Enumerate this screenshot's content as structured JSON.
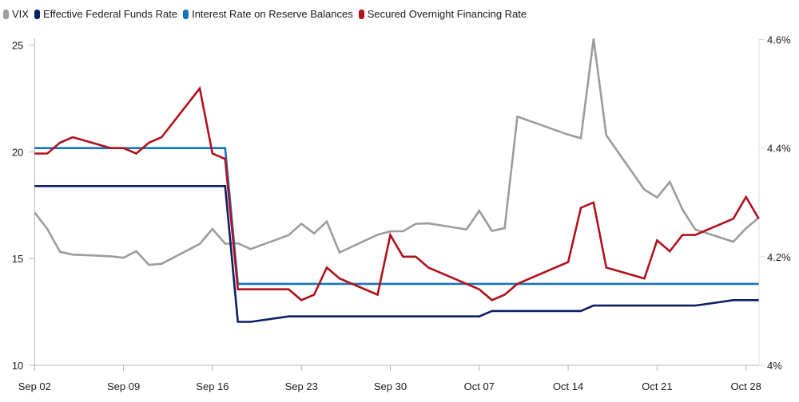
{
  "chart_data": {
    "type": "line",
    "title": "",
    "legend_placement": "top-left",
    "x_tick_labels": [
      "Sep 02",
      "Sep 09",
      "Sep 16",
      "Sep 23",
      "Sep 30",
      "Oct 07",
      "Oct 14",
      "Oct 21",
      "Oct 28"
    ],
    "x_tick_days": [
      0,
      7,
      14,
      21,
      28,
      35,
      42,
      49,
      56
    ],
    "x_days": [
      0,
      1,
      2,
      3,
      6,
      7,
      8,
      9,
      10,
      13,
      14,
      15,
      16,
      17,
      20,
      21,
      22,
      23,
      24,
      27,
      28,
      29,
      30,
      31,
      34,
      35,
      36,
      37,
      38,
      42,
      43,
      44,
      45,
      48,
      49,
      50,
      51,
      52,
      55,
      56,
      57
    ],
    "left_axis": {
      "label": "",
      "ylim": [
        10,
        25
      ],
      "ticks": [
        "10",
        "15",
        "20",
        "25"
      ],
      "tick_values": [
        10,
        15,
        20,
        25
      ]
    },
    "right_axis": {
      "label": "",
      "ylim": [
        4.0,
        4.6
      ],
      "ticks": [
        "4%",
        "4.2%",
        "4.4%",
        "4.6%"
      ],
      "tick_values": [
        4.0,
        4.2,
        4.4,
        4.6
      ]
    },
    "series": [
      {
        "name": "VIX",
        "axis": "left",
        "color": "#9b9ca0",
        "values": [
          17.16,
          16.39,
          15.32,
          15.19,
          15.11,
          15.04,
          15.35,
          14.71,
          14.76,
          15.69,
          16.39,
          15.7,
          15.72,
          15.45,
          16.1,
          16.64,
          16.18,
          16.74,
          15.29,
          16.12,
          16.28,
          16.28,
          16.63,
          16.65,
          16.37,
          17.24,
          16.3,
          16.43,
          21.66,
          20.81,
          20.64,
          25.31,
          20.78,
          18.23,
          17.87,
          18.6,
          17.3,
          16.37,
          15.79,
          16.42,
          16.92
        ]
      },
      {
        "name": "Effective Federal Funds Rate",
        "axis": "right",
        "color": "#0b1f66",
        "values": [
          4.33,
          4.33,
          4.33,
          4.33,
          4.33,
          4.33,
          4.33,
          4.33,
          4.33,
          4.33,
          4.33,
          4.33,
          4.08,
          4.08,
          4.09,
          4.09,
          4.09,
          4.09,
          4.09,
          4.09,
          4.09,
          4.09,
          4.09,
          4.09,
          4.09,
          4.09,
          4.1,
          4.1,
          4.1,
          4.1,
          4.1,
          4.11,
          4.11,
          4.11,
          4.11,
          4.11,
          4.11,
          4.11,
          4.12,
          4.12,
          4.12
        ]
      },
      {
        "name": "Interest Rate on Reserve Balances",
        "axis": "right",
        "color": "#1a72b9",
        "values": [
          4.4,
          4.4,
          4.4,
          4.4,
          4.4,
          4.4,
          4.4,
          4.4,
          4.4,
          4.4,
          4.4,
          4.4,
          4.15,
          4.15,
          4.15,
          4.15,
          4.15,
          4.15,
          4.15,
          4.15,
          4.15,
          4.15,
          4.15,
          4.15,
          4.15,
          4.15,
          4.15,
          4.15,
          4.15,
          4.15,
          4.15,
          4.15,
          4.15,
          4.15,
          4.15,
          4.15,
          4.15,
          4.15,
          4.15,
          4.15,
          4.15
        ]
      },
      {
        "name": "Secured Overnight Financing Rate",
        "axis": "right",
        "color": "#b0121c",
        "values": [
          4.39,
          4.39,
          4.41,
          4.42,
          4.4,
          4.4,
          4.39,
          4.41,
          4.42,
          4.51,
          4.39,
          4.38,
          4.14,
          4.14,
          4.14,
          4.12,
          4.13,
          4.18,
          4.16,
          4.13,
          4.24,
          4.2,
          4.2,
          4.18,
          4.15,
          4.14,
          4.12,
          4.13,
          4.15,
          4.19,
          4.29,
          4.3,
          4.18,
          4.16,
          4.23,
          4.21,
          4.24,
          4.24,
          4.27,
          4.31,
          4.27
        ]
      }
    ]
  }
}
